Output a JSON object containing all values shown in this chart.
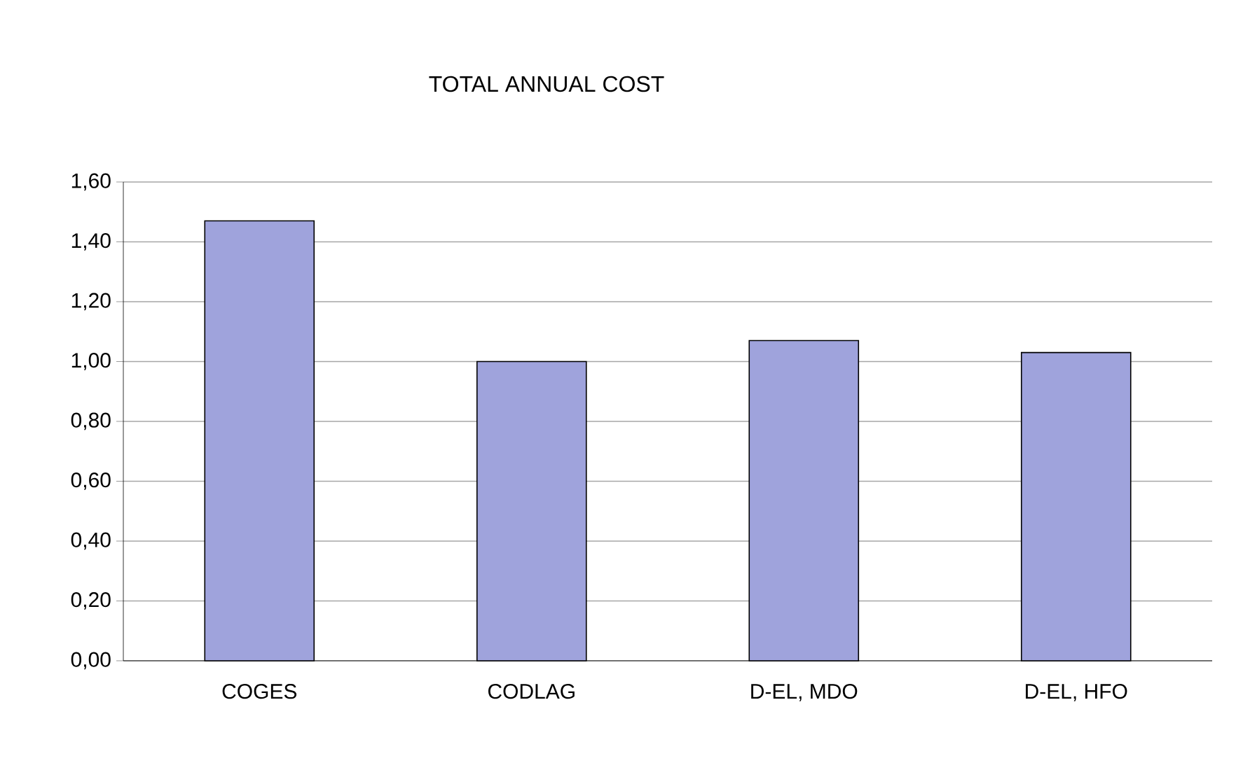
{
  "chart_data": {
    "type": "bar",
    "title": "TOTAL ANNUAL COST",
    "categories": [
      "COGES",
      "CODLAG",
      "D-EL, MDO",
      "D-EL, HFO"
    ],
    "values": [
      1.47,
      1.0,
      1.07,
      1.03
    ],
    "color": "#9fa3dc",
    "ylim": [
      0,
      1.6
    ],
    "yticks": [
      {
        "value": 0,
        "label": "0,00"
      },
      {
        "value": 0.2,
        "label": "0,20"
      },
      {
        "value": 0.4,
        "label": "0,40"
      },
      {
        "value": 0.6,
        "label": "0,60"
      },
      {
        "value": 0.8,
        "label": "0,80"
      },
      {
        "value": 1.0,
        "label": "1,00"
      },
      {
        "value": 1.2,
        "label": "1,20"
      },
      {
        "value": 1.4,
        "label": "1,40"
      },
      {
        "value": 1.6,
        "label": "1,60"
      }
    ],
    "grid": "y"
  }
}
